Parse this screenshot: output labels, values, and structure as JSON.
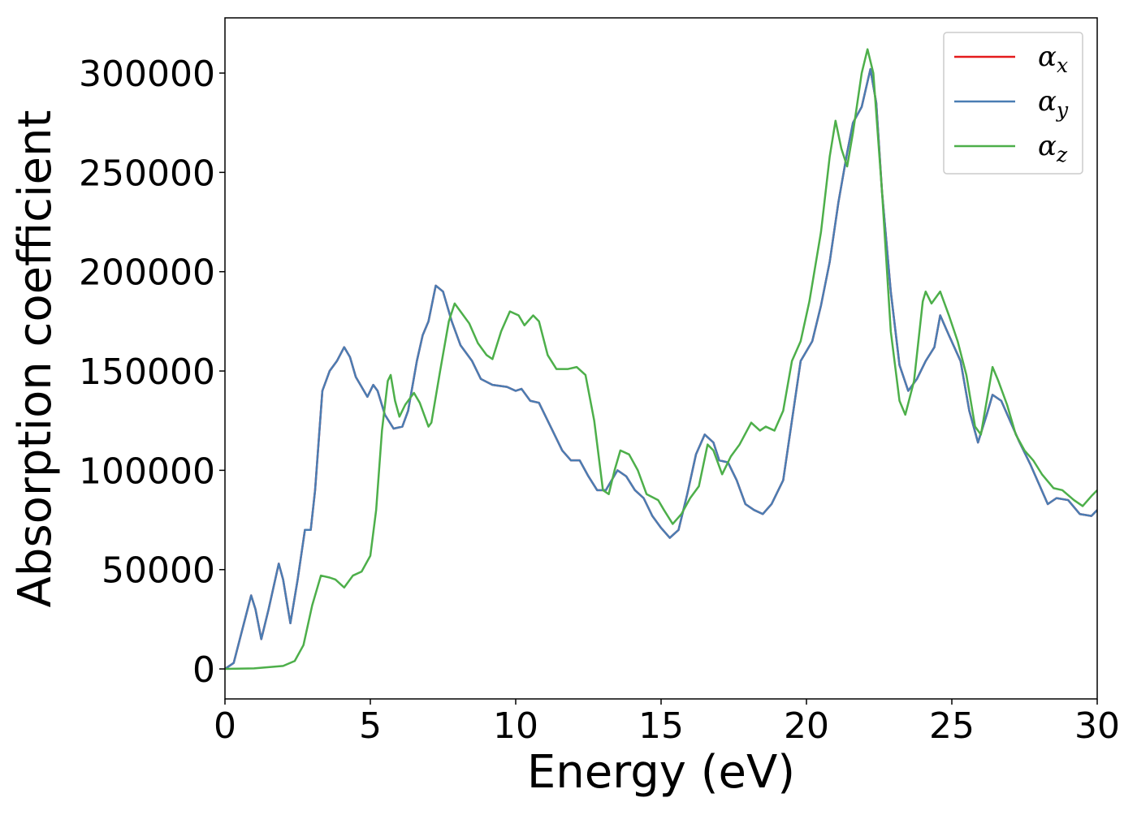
{
  "chart_data": {
    "type": "line",
    "x_label": "Energy (eV)",
    "y_label": "Absorption coefficient",
    "xlim": [
      0,
      30
    ],
    "xticks": [
      0,
      5,
      10,
      15,
      20,
      25,
      30
    ],
    "ylim": [
      -15100,
      327800
    ],
    "yticks": [
      0,
      50000,
      100000,
      150000,
      200000,
      250000,
      300000
    ],
    "grid": false,
    "legend": "upper right",
    "series": [
      {
        "name": "αx",
        "color": "#e41a1c",
        "x": [
          0,
          0.3,
          0.6,
          0.9,
          1.05,
          1.25,
          1.5,
          1.85,
          2.0,
          2.25,
          2.5,
          2.75,
          2.95,
          3.1,
          3.35,
          3.6,
          3.85,
          4.1,
          4.3,
          4.5,
          4.9,
          5.1,
          5.25,
          5.5,
          5.8,
          6.1,
          6.3,
          6.6,
          6.8,
          7.0,
          7.25,
          7.5,
          7.8,
          8.1,
          8.5,
          8.8,
          9.2,
          9.7,
          10.0,
          10.2,
          10.5,
          10.8,
          11.2,
          11.6,
          11.9,
          12.2,
          12.5,
          12.8,
          13.1,
          13.5,
          13.8,
          14.1,
          14.4,
          14.7,
          15.0,
          15.3,
          15.6,
          15.9,
          16.2,
          16.5,
          16.8,
          17.0,
          17.3,
          17.6,
          17.9,
          18.2,
          18.5,
          18.8,
          19.2,
          19.5,
          19.8,
          20.2,
          20.5,
          20.8,
          21.1,
          21.4,
          21.6,
          21.9,
          22.2,
          22.4,
          22.6,
          22.9,
          23.2,
          23.5,
          23.8,
          24.1,
          24.4,
          24.6,
          24.9,
          25.3,
          25.6,
          25.9,
          26.2,
          26.4,
          26.7,
          27.0,
          27.3,
          27.7,
          28.0,
          28.3,
          28.6,
          29.0,
          29.4,
          29.8,
          30
        ],
        "values": [
          0,
          3000,
          20000,
          37000,
          30000,
          15000,
          30000,
          53000,
          45000,
          23000,
          45000,
          70000,
          70000,
          90000,
          140000,
          150000,
          155000,
          162000,
          157000,
          147000,
          137000,
          143000,
          140000,
          128000,
          121000,
          122000,
          130000,
          155000,
          168000,
          175000,
          193000,
          190000,
          175000,
          163000,
          155000,
          146000,
          143000,
          142000,
          140000,
          141000,
          135000,
          134000,
          122000,
          110000,
          105000,
          105000,
          97000,
          90000,
          90000,
          100000,
          97000,
          90000,
          86000,
          77000,
          71000,
          66000,
          70000,
          88000,
          108000,
          118000,
          114000,
          105000,
          104000,
          95000,
          83000,
          80000,
          78000,
          83000,
          95000,
          125000,
          155000,
          165000,
          183000,
          205000,
          235000,
          260000,
          275000,
          283000,
          302000,
          285000,
          240000,
          190000,
          153000,
          140000,
          146000,
          155000,
          162000,
          178000,
          168000,
          155000,
          130000,
          114000,
          128000,
          138000,
          135000,
          125000,
          115000,
          103000,
          93000,
          83000,
          86000,
          85000,
          78000,
          77000,
          80000
        ]
      },
      {
        "name": "αy",
        "color": "#4a7db3",
        "x": [
          0,
          0.3,
          0.6,
          0.9,
          1.05,
          1.25,
          1.5,
          1.85,
          2.0,
          2.25,
          2.5,
          2.75,
          2.95,
          3.1,
          3.35,
          3.6,
          3.85,
          4.1,
          4.3,
          4.5,
          4.9,
          5.1,
          5.25,
          5.5,
          5.8,
          6.1,
          6.3,
          6.6,
          6.8,
          7.0,
          7.25,
          7.5,
          7.8,
          8.1,
          8.5,
          8.8,
          9.2,
          9.7,
          10.0,
          10.2,
          10.5,
          10.8,
          11.2,
          11.6,
          11.9,
          12.2,
          12.5,
          12.8,
          13.1,
          13.5,
          13.8,
          14.1,
          14.4,
          14.7,
          15.0,
          15.3,
          15.6,
          15.9,
          16.2,
          16.5,
          16.8,
          17.0,
          17.3,
          17.6,
          17.9,
          18.2,
          18.5,
          18.8,
          19.2,
          19.5,
          19.8,
          20.2,
          20.5,
          20.8,
          21.1,
          21.4,
          21.6,
          21.9,
          22.2,
          22.4,
          22.6,
          22.9,
          23.2,
          23.5,
          23.8,
          24.1,
          24.4,
          24.6,
          24.9,
          25.3,
          25.6,
          25.9,
          26.2,
          26.4,
          26.7,
          27.0,
          27.3,
          27.7,
          28.0,
          28.3,
          28.6,
          29.0,
          29.4,
          29.8,
          30
        ],
        "values": [
          0,
          3000,
          20000,
          37000,
          30000,
          15000,
          30000,
          53000,
          45000,
          23000,
          45000,
          70000,
          70000,
          90000,
          140000,
          150000,
          155000,
          162000,
          157000,
          147000,
          137000,
          143000,
          140000,
          128000,
          121000,
          122000,
          130000,
          155000,
          168000,
          175000,
          193000,
          190000,
          175000,
          163000,
          155000,
          146000,
          143000,
          142000,
          140000,
          141000,
          135000,
          134000,
          122000,
          110000,
          105000,
          105000,
          97000,
          90000,
          90000,
          100000,
          97000,
          90000,
          86000,
          77000,
          71000,
          66000,
          70000,
          88000,
          108000,
          118000,
          114000,
          105000,
          104000,
          95000,
          83000,
          80000,
          78000,
          83000,
          95000,
          125000,
          155000,
          165000,
          183000,
          205000,
          235000,
          260000,
          275000,
          283000,
          302000,
          285000,
          240000,
          190000,
          153000,
          140000,
          146000,
          155000,
          162000,
          178000,
          168000,
          155000,
          130000,
          114000,
          128000,
          138000,
          135000,
          125000,
          115000,
          103000,
          93000,
          83000,
          86000,
          85000,
          78000,
          77000,
          80000
        ]
      },
      {
        "name": "αz",
        "color": "#4daf4a",
        "x": [
          0,
          1,
          2,
          2.4,
          2.7,
          3.0,
          3.3,
          3.6,
          3.8,
          4.1,
          4.4,
          4.7,
          5.0,
          5.2,
          5.4,
          5.6,
          5.7,
          5.85,
          6.0,
          6.2,
          6.5,
          6.7,
          7.0,
          7.1,
          7.4,
          7.7,
          7.9,
          8.1,
          8.4,
          8.7,
          9.0,
          9.2,
          9.5,
          9.8,
          10.1,
          10.3,
          10.6,
          10.8,
          11.1,
          11.4,
          11.8,
          12.1,
          12.4,
          12.7,
          13.0,
          13.2,
          13.4,
          13.6,
          13.9,
          14.2,
          14.5,
          14.9,
          15.1,
          15.4,
          15.7,
          16.0,
          16.3,
          16.6,
          16.8,
          17.1,
          17.4,
          17.7,
          18.1,
          18.4,
          18.6,
          18.9,
          19.2,
          19.5,
          19.8,
          20.1,
          20.5,
          20.8,
          21.0,
          21.2,
          21.4,
          21.6,
          21.9,
          22.1,
          22.3,
          22.6,
          22.9,
          23.2,
          23.4,
          23.7,
          24.0,
          24.1,
          24.3,
          24.6,
          24.9,
          25.2,
          25.5,
          25.8,
          26.0,
          26.2,
          26.4,
          26.6,
          26.9,
          27.2,
          27.5,
          27.8,
          28.1,
          28.5,
          28.8,
          29.2,
          29.5,
          29.8,
          30
        ],
        "values": [
          0,
          300,
          1500,
          4000,
          12000,
          32000,
          47000,
          46000,
          45000,
          41000,
          47000,
          49000,
          57000,
          80000,
          120000,
          145000,
          148000,
          135000,
          127000,
          133000,
          139000,
          134000,
          122000,
          124000,
          150000,
          175000,
          184000,
          180000,
          174000,
          164000,
          158000,
          156000,
          170000,
          180000,
          178000,
          173000,
          178000,
          175000,
          158000,
          151000,
          151000,
          152000,
          148000,
          125000,
          90000,
          88000,
          100000,
          110000,
          108000,
          100000,
          88000,
          85000,
          80000,
          73000,
          78000,
          86000,
          92000,
          113000,
          110000,
          98000,
          107000,
          113000,
          124000,
          120000,
          122000,
          120000,
          130000,
          155000,
          165000,
          185000,
          220000,
          258000,
          276000,
          262000,
          253000,
          270000,
          300000,
          312000,
          300000,
          240000,
          170000,
          135000,
          128000,
          145000,
          185000,
          190000,
          184000,
          190000,
          178000,
          165000,
          148000,
          122000,
          118000,
          135000,
          152000,
          145000,
          133000,
          118000,
          110000,
          105000,
          98000,
          91000,
          90000,
          85000,
          82000,
          87000,
          90000
        ]
      }
    ]
  }
}
